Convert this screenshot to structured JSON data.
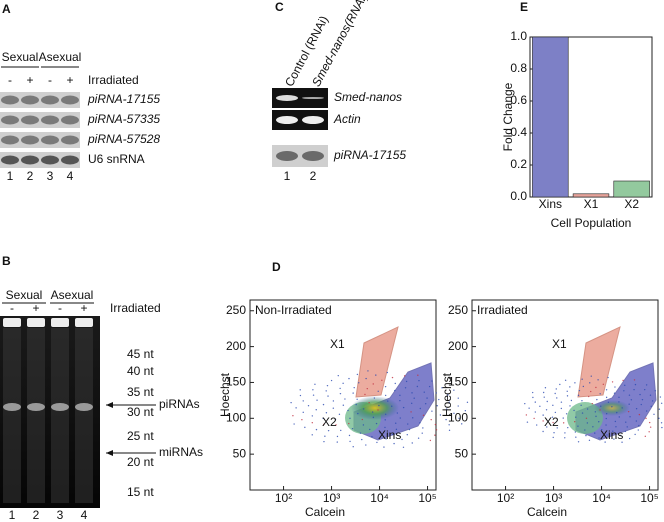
{
  "panel_a": {
    "label": "A",
    "groups": [
      "Sexual",
      "Asexual"
    ],
    "treatment_signs": [
      "-",
      "+",
      "-",
      "+"
    ],
    "treatment": "Irradiated",
    "rows": [
      "piRNA-17155",
      "piRNA-57335",
      "piRNA-57528",
      "U6 snRNA"
    ],
    "lanes": [
      "1",
      "2",
      "3",
      "4"
    ]
  },
  "panel_b": {
    "label": "B",
    "groups": [
      "Sexual",
      "Asexual"
    ],
    "treatment_signs": [
      "-",
      "+",
      "-",
      "+"
    ],
    "treatment": "Irradiated",
    "markers": [
      "45 nt",
      "40 nt",
      "35 nt",
      "30 nt",
      "25 nt",
      "20 nt",
      "15 nt"
    ],
    "annotations": [
      "piRNAs",
      "miRNAs"
    ],
    "lanes": [
      "1",
      "2",
      "3",
      "4"
    ]
  },
  "panel_c": {
    "label": "C",
    "conditions": [
      "Control (RNAi)",
      "Smed-nanos(RNAi)"
    ],
    "rows": [
      "Smed-nanos",
      "Actin",
      "piRNA-17155"
    ],
    "lanes": [
      "1",
      "2"
    ]
  },
  "panel_d": {
    "label": "D",
    "plots": [
      {
        "title": "Non-Irradiated",
        "xlabel": "Calcein",
        "ylabel": "Hoechst",
        "xscale": "log",
        "xlim": [
          20,
          150000
        ],
        "ylim": [
          0,
          265
        ],
        "xticks": [
          {
            "value": 100,
            "label": "10²"
          },
          {
            "value": 1000,
            "label": "10³"
          },
          {
            "value": 10000,
            "label": "10⁴"
          },
          {
            "value": 100000,
            "label": "10⁵"
          }
        ],
        "yticks": [
          50,
          100,
          150,
          200,
          250
        ],
        "gates": [
          "X1",
          "X2",
          "Xins"
        ]
      },
      {
        "title": "Irradiated",
        "xlabel": "Calcein",
        "ylabel": "Hoechst",
        "xscale": "log",
        "xlim": [
          20,
          150000
        ],
        "ylim": [
          0,
          265
        ],
        "xticks": [
          {
            "value": 100,
            "label": "10²"
          },
          {
            "value": 1000,
            "label": "10³"
          },
          {
            "value": 10000,
            "label": "10⁴"
          },
          {
            "value": 100000,
            "label": "10⁵"
          }
        ],
        "yticks": [
          50,
          100,
          150,
          200,
          250
        ],
        "gates": [
          "X1",
          "X2",
          "Xins"
        ]
      }
    ]
  },
  "chart_data": {
    "type": "bar",
    "panel_label": "E",
    "categories": [
      "Xins",
      "X1",
      "X2"
    ],
    "values": [
      1.0,
      0.02,
      0.1
    ],
    "colors": [
      "#7d80c6",
      "#e6a39b",
      "#93c99e"
    ],
    "ylabel": "Fold Change",
    "xlabel": "Cell Population",
    "ylim": [
      0,
      1.0
    ],
    "yticks": [
      {
        "value": 0,
        "label": "0.0"
      },
      0.2,
      0.4,
      0.6,
      0.8,
      {
        "value": 1,
        "label": "1.0"
      }
    ]
  }
}
